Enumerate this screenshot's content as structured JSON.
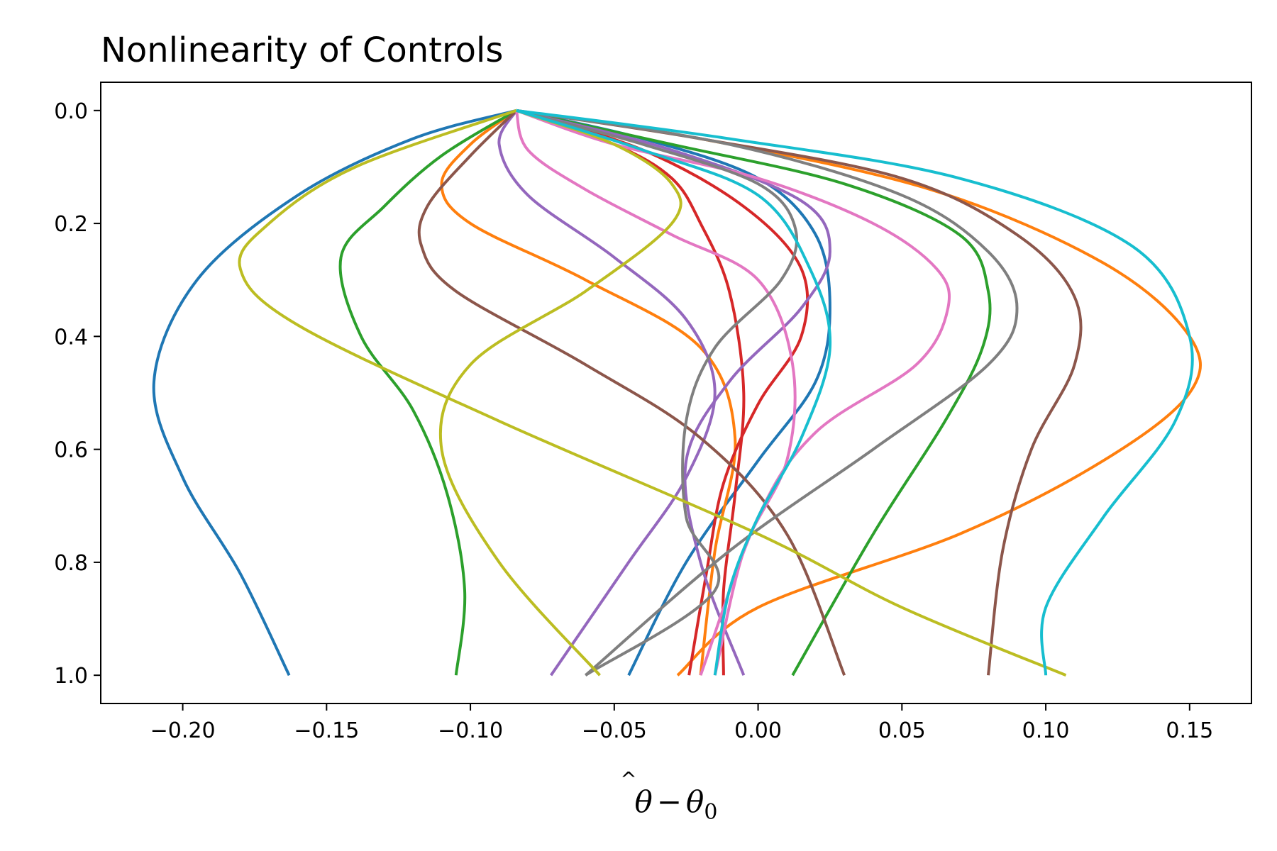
{
  "chart_data": {
    "type": "line",
    "title": "Nonlinearity of Controls",
    "xlabel": {
      "theta": "θ",
      "hat": "^",
      "minus": "−",
      "sub": "0"
    },
    "ylabel": "",
    "xlim": [
      -0.2285,
      0.1715
    ],
    "ylim": [
      1.05,
      -0.05
    ],
    "y_inverted": true,
    "grid": false,
    "legend": "none",
    "xticks": [
      {
        "v": -0.2,
        "label": "−0.20"
      },
      {
        "v": -0.15,
        "label": "−0.15"
      },
      {
        "v": -0.1,
        "label": "−0.10"
      },
      {
        "v": -0.05,
        "label": "−0.05"
      },
      {
        "v": 0.0,
        "label": "0.00"
      },
      {
        "v": 0.05,
        "label": "0.05"
      },
      {
        "v": 0.1,
        "label": "0.10"
      },
      {
        "v": 0.15,
        "label": "0.15"
      }
    ],
    "yticks": [
      {
        "v": 0.0,
        "label": "0.0"
      },
      {
        "v": 0.2,
        "label": "0.2"
      },
      {
        "v": 0.4,
        "label": "0.4"
      },
      {
        "v": 0.6,
        "label": "0.6"
      },
      {
        "v": 0.8,
        "label": "0.8"
      },
      {
        "v": 1.0,
        "label": "1.0"
      }
    ],
    "series": [
      {
        "color": "#1f77b4",
        "points": [
          [
            -0.084,
            0.0
          ],
          [
            -0.12,
            0.05
          ],
          [
            -0.16,
            0.15
          ],
          [
            -0.195,
            0.3
          ],
          [
            -0.21,
            0.48
          ],
          [
            -0.2,
            0.65
          ],
          [
            -0.18,
            0.82
          ],
          [
            -0.163,
            1.0
          ]
        ]
      },
      {
        "color": "#1f77b4",
        "points": [
          [
            -0.084,
            0.0
          ],
          [
            -0.04,
            0.05
          ],
          [
            0.0,
            0.12
          ],
          [
            0.02,
            0.22
          ],
          [
            0.025,
            0.35
          ],
          [
            0.02,
            0.48
          ],
          [
            0.0,
            0.62
          ],
          [
            -0.025,
            0.8
          ],
          [
            -0.045,
            1.0
          ]
        ]
      },
      {
        "color": "#ff7f0e",
        "points": [
          [
            -0.084,
            0.0
          ],
          [
            -0.1,
            0.06
          ],
          [
            -0.11,
            0.13
          ],
          [
            -0.1,
            0.2
          ],
          [
            -0.06,
            0.3
          ],
          [
            -0.02,
            0.42
          ],
          [
            -0.008,
            0.58
          ],
          [
            -0.015,
            0.78
          ],
          [
            -0.02,
            1.0
          ]
        ]
      },
      {
        "color": "#ff7f0e",
        "points": [
          [
            -0.084,
            0.0
          ],
          [
            -0.02,
            0.05
          ],
          [
            0.06,
            0.14
          ],
          [
            0.12,
            0.27
          ],
          [
            0.15,
            0.4
          ],
          [
            0.15,
            0.5
          ],
          [
            0.12,
            0.62
          ],
          [
            0.07,
            0.75
          ],
          [
            0.0,
            0.88
          ],
          [
            -0.028,
            1.0
          ]
        ]
      },
      {
        "color": "#2ca02c",
        "points": [
          [
            -0.084,
            0.0
          ],
          [
            -0.11,
            0.08
          ],
          [
            -0.13,
            0.17
          ],
          [
            -0.145,
            0.26
          ],
          [
            -0.138,
            0.4
          ],
          [
            -0.12,
            0.53
          ],
          [
            -0.108,
            0.68
          ],
          [
            -0.102,
            0.85
          ],
          [
            -0.105,
            1.0
          ]
        ]
      },
      {
        "color": "#2ca02c",
        "points": [
          [
            -0.084,
            0.0
          ],
          [
            -0.03,
            0.06
          ],
          [
            0.03,
            0.13
          ],
          [
            0.07,
            0.22
          ],
          [
            0.08,
            0.32
          ],
          [
            0.078,
            0.42
          ],
          [
            0.065,
            0.55
          ],
          [
            0.04,
            0.75
          ],
          [
            0.012,
            1.0
          ]
        ]
      },
      {
        "color": "#d62728",
        "points": [
          [
            -0.084,
            0.0
          ],
          [
            -0.05,
            0.06
          ],
          [
            -0.03,
            0.12
          ],
          [
            -0.02,
            0.2
          ],
          [
            -0.01,
            0.32
          ],
          [
            -0.005,
            0.5
          ],
          [
            -0.008,
            0.68
          ],
          [
            -0.012,
            0.85
          ],
          [
            -0.012,
            1.0
          ]
        ]
      },
      {
        "color": "#d62728",
        "points": [
          [
            -0.084,
            0.0
          ],
          [
            -0.04,
            0.07
          ],
          [
            -0.005,
            0.17
          ],
          [
            0.015,
            0.28
          ],
          [
            0.015,
            0.4
          ],
          [
            0.0,
            0.52
          ],
          [
            -0.012,
            0.66
          ],
          [
            -0.018,
            0.82
          ],
          [
            -0.024,
            1.0
          ]
        ]
      },
      {
        "color": "#9467bd",
        "points": [
          [
            -0.084,
            0.0
          ],
          [
            -0.09,
            0.06
          ],
          [
            -0.08,
            0.15
          ],
          [
            -0.05,
            0.26
          ],
          [
            -0.025,
            0.37
          ],
          [
            -0.015,
            0.5
          ],
          [
            -0.025,
            0.65
          ],
          [
            -0.045,
            0.8
          ],
          [
            -0.072,
            1.0
          ]
        ]
      },
      {
        "color": "#9467bd",
        "points": [
          [
            -0.084,
            0.0
          ],
          [
            -0.03,
            0.07
          ],
          [
            0.015,
            0.16
          ],
          [
            0.025,
            0.25
          ],
          [
            0.015,
            0.35
          ],
          [
            -0.01,
            0.48
          ],
          [
            -0.025,
            0.62
          ],
          [
            -0.02,
            0.8
          ],
          [
            -0.005,
            1.0
          ]
        ]
      },
      {
        "color": "#8c564b",
        "points": [
          [
            -0.084,
            0.0
          ],
          [
            -0.1,
            0.08
          ],
          [
            -0.115,
            0.17
          ],
          [
            -0.117,
            0.24
          ],
          [
            -0.105,
            0.32
          ],
          [
            -0.06,
            0.45
          ],
          [
            -0.02,
            0.58
          ],
          [
            0.01,
            0.75
          ],
          [
            0.03,
            1.0
          ]
        ]
      },
      {
        "color": "#8c564b",
        "points": [
          [
            -0.084,
            0.0
          ],
          [
            -0.02,
            0.05
          ],
          [
            0.05,
            0.12
          ],
          [
            0.09,
            0.22
          ],
          [
            0.11,
            0.33
          ],
          [
            0.11,
            0.45
          ],
          [
            0.095,
            0.6
          ],
          [
            0.085,
            0.78
          ],
          [
            0.08,
            1.0
          ]
        ]
      },
      {
        "color": "#e377c2",
        "points": [
          [
            -0.084,
            0.0
          ],
          [
            -0.08,
            0.07
          ],
          [
            -0.06,
            0.14
          ],
          [
            -0.03,
            0.22
          ],
          [
            0.0,
            0.3
          ],
          [
            0.012,
            0.45
          ],
          [
            0.01,
            0.62
          ],
          [
            -0.005,
            0.78
          ],
          [
            -0.015,
            1.0
          ]
        ]
      },
      {
        "color": "#e377c2",
        "points": [
          [
            -0.084,
            0.0
          ],
          [
            -0.05,
            0.06
          ],
          [
            0.0,
            0.12
          ],
          [
            0.04,
            0.2
          ],
          [
            0.062,
            0.28
          ],
          [
            0.066,
            0.35
          ],
          [
            0.055,
            0.45
          ],
          [
            0.02,
            0.57
          ],
          [
            0.0,
            0.72
          ],
          [
            -0.02,
            1.0
          ]
        ]
      },
      {
        "color": "#7f7f7f",
        "points": [
          [
            -0.084,
            0.0
          ],
          [
            -0.04,
            0.06
          ],
          [
            0.0,
            0.13
          ],
          [
            0.013,
            0.21
          ],
          [
            0.008,
            0.3
          ],
          [
            -0.015,
            0.42
          ],
          [
            -0.025,
            0.55
          ],
          [
            -0.025,
            0.72
          ],
          [
            -0.015,
            0.85
          ],
          [
            -0.06,
            1.0
          ]
        ]
      },
      {
        "color": "#7f7f7f",
        "points": [
          [
            -0.084,
            0.0
          ],
          [
            -0.01,
            0.06
          ],
          [
            0.05,
            0.15
          ],
          [
            0.08,
            0.25
          ],
          [
            0.09,
            0.35
          ],
          [
            0.08,
            0.45
          ],
          [
            0.04,
            0.6
          ],
          [
            -0.01,
            0.78
          ],
          [
            -0.06,
            1.0
          ]
        ]
      },
      {
        "color": "#bcbd22",
        "points": [
          [
            -0.084,
            0.0
          ],
          [
            -0.14,
            0.1
          ],
          [
            -0.17,
            0.2
          ],
          [
            -0.18,
            0.28
          ],
          [
            -0.16,
            0.38
          ],
          [
            -0.09,
            0.55
          ],
          [
            0.0,
            0.75
          ],
          [
            0.05,
            0.88
          ],
          [
            0.107,
            1.0
          ]
        ]
      },
      {
        "color": "#bcbd22",
        "points": [
          [
            -0.084,
            0.0
          ],
          [
            -0.05,
            0.06
          ],
          [
            -0.03,
            0.13
          ],
          [
            -0.03,
            0.2
          ],
          [
            -0.06,
            0.32
          ],
          [
            -0.1,
            0.45
          ],
          [
            -0.11,
            0.6
          ],
          [
            -0.09,
            0.8
          ],
          [
            -0.055,
            1.0
          ]
        ]
      },
      {
        "color": "#17becf",
        "points": [
          [
            -0.084,
            0.0
          ],
          [
            -0.04,
            0.07
          ],
          [
            0.0,
            0.15
          ],
          [
            0.018,
            0.28
          ],
          [
            0.025,
            0.42
          ],
          [
            0.015,
            0.58
          ],
          [
            0.0,
            0.72
          ],
          [
            -0.01,
            0.85
          ],
          [
            -0.015,
            1.0
          ]
        ]
      },
      {
        "color": "#17becf",
        "points": [
          [
            -0.084,
            0.0
          ],
          [
            -0.01,
            0.05
          ],
          [
            0.07,
            0.12
          ],
          [
            0.13,
            0.24
          ],
          [
            0.15,
            0.4
          ],
          [
            0.145,
            0.55
          ],
          [
            0.12,
            0.72
          ],
          [
            0.1,
            0.88
          ],
          [
            0.1,
            1.0
          ]
        ]
      }
    ]
  }
}
